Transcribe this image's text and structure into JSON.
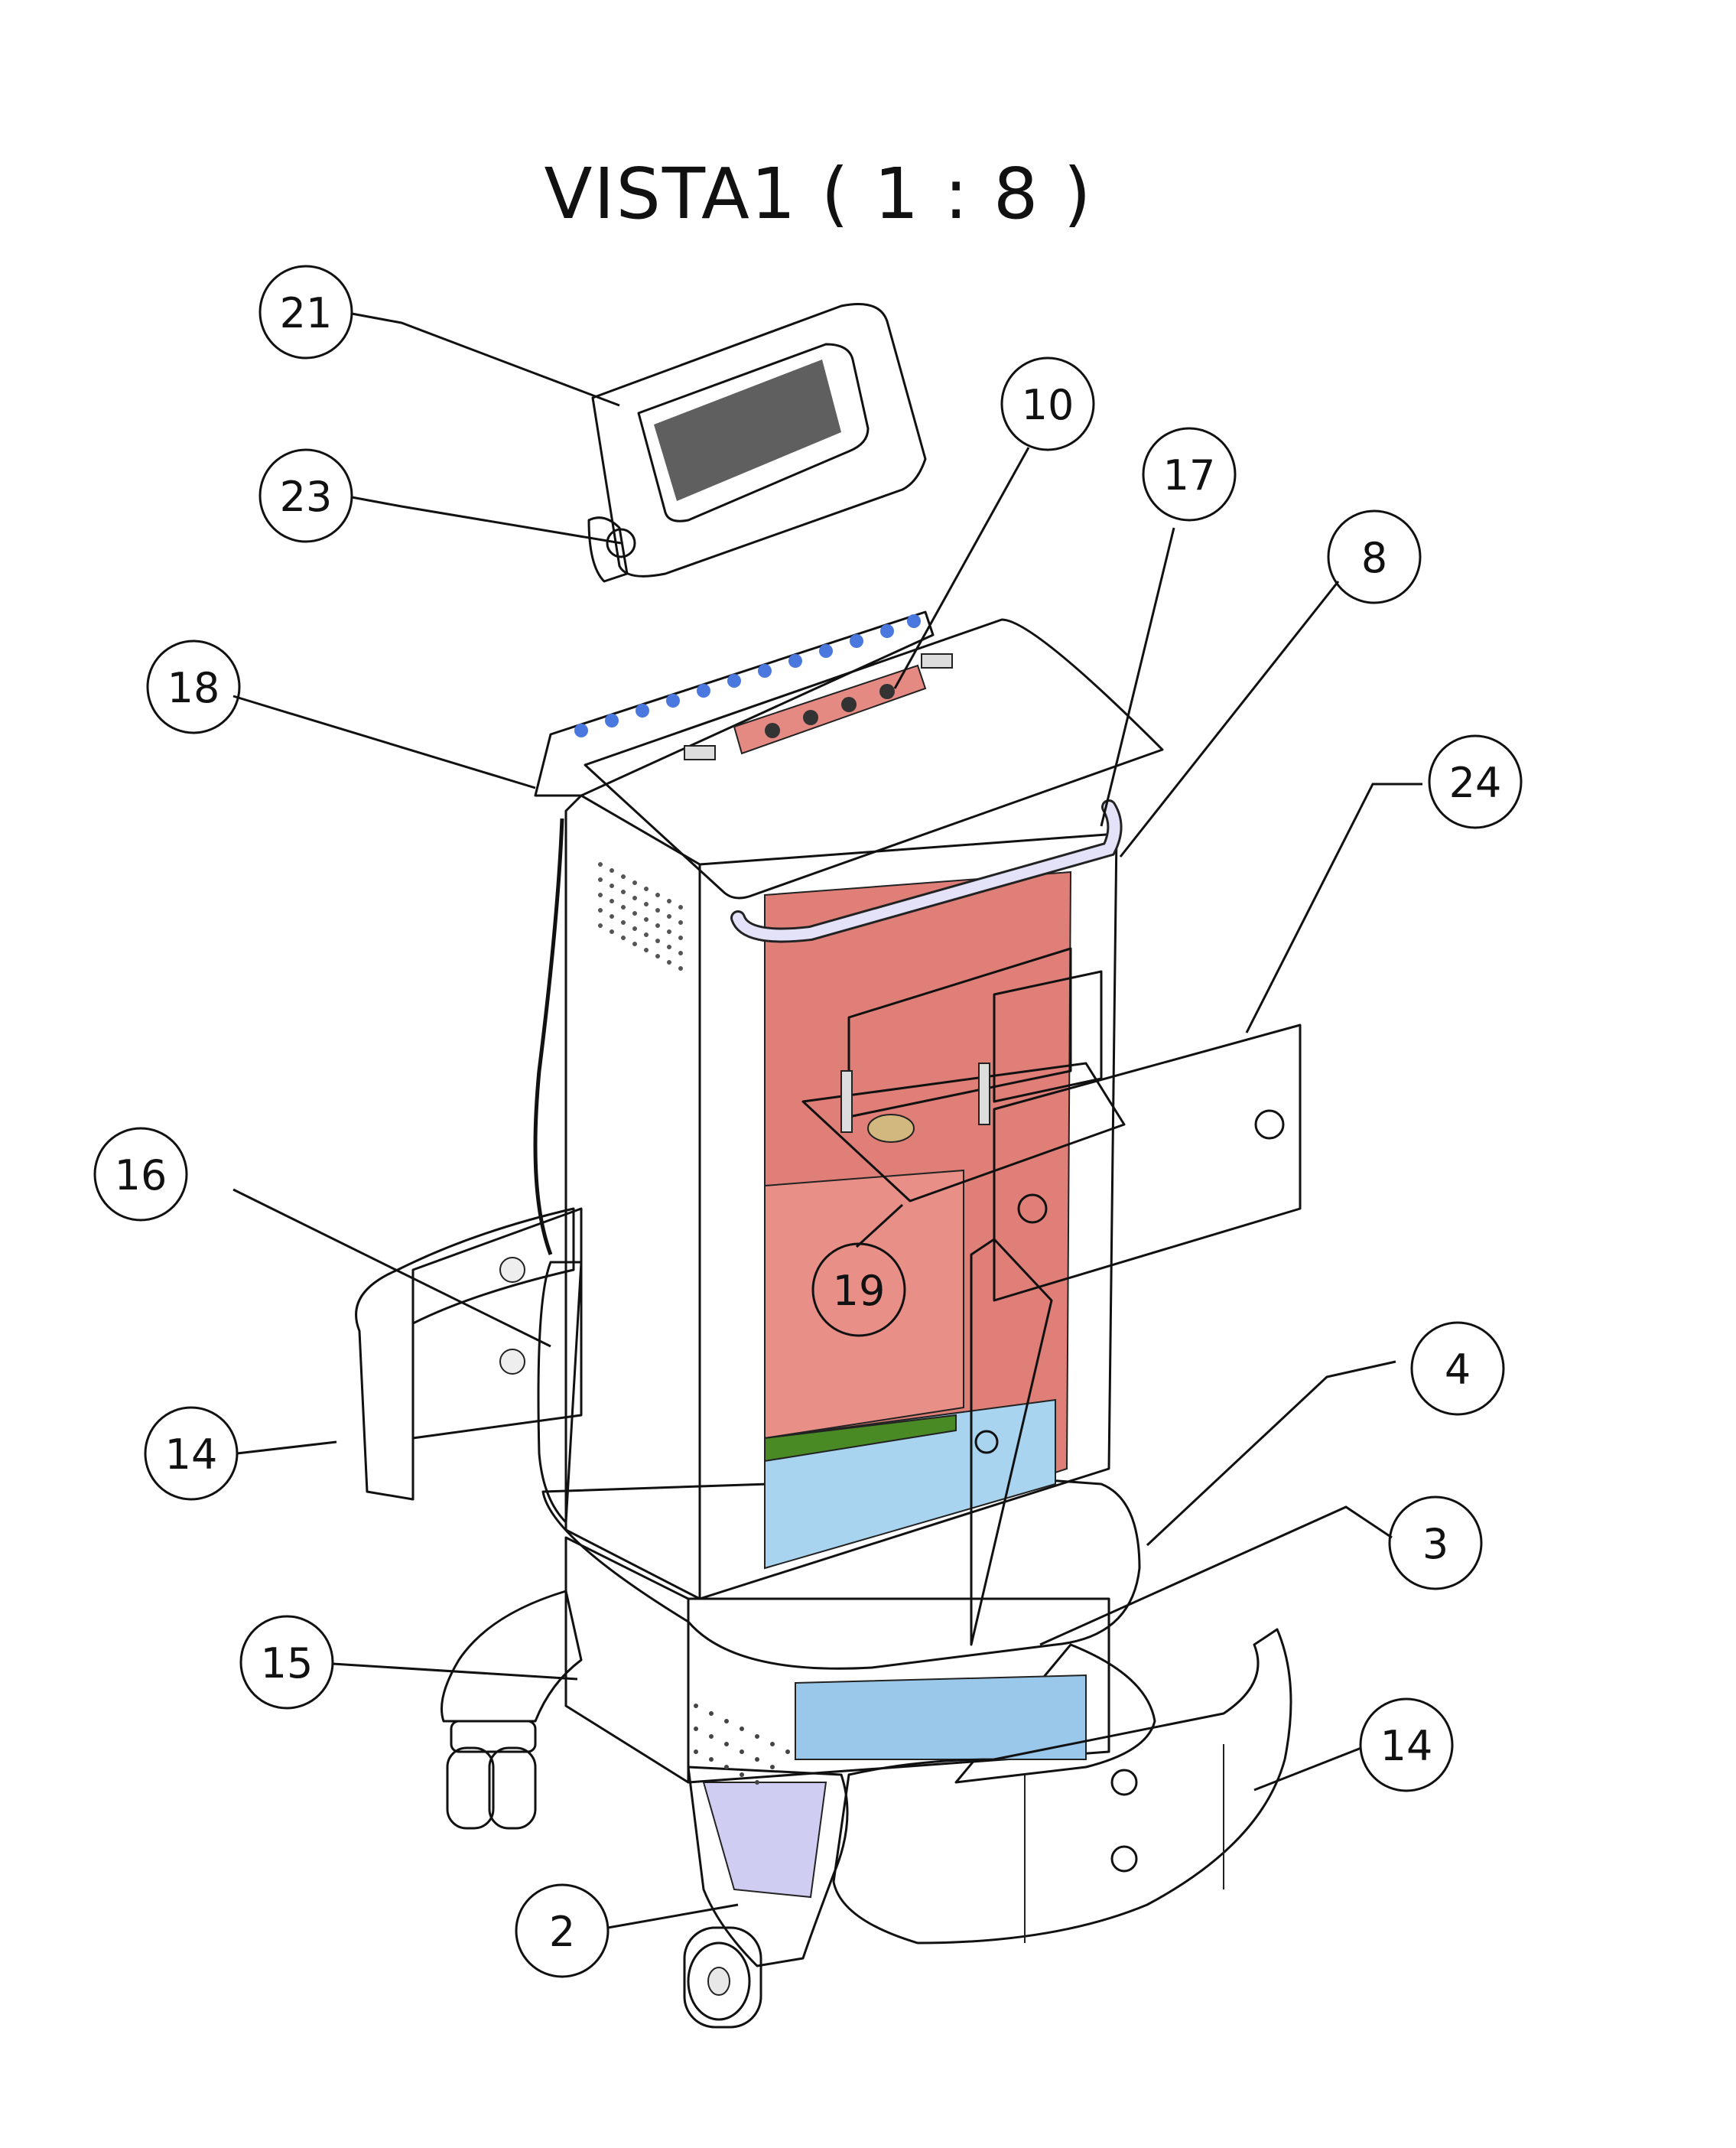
{
  "title": "VISTA1 ( 1 : 8 )",
  "balloons": [
    {
      "id": "b21",
      "label": "21"
    },
    {
      "id": "b23",
      "label": "23"
    },
    {
      "id": "b10",
      "label": "10"
    },
    {
      "id": "b17",
      "label": "17"
    },
    {
      "id": "b8",
      "label": "8"
    },
    {
      "id": "b18",
      "label": "18"
    },
    {
      "id": "b24",
      "label": "24"
    },
    {
      "id": "b16",
      "label": "16"
    },
    {
      "id": "b19",
      "label": "19"
    },
    {
      "id": "b4",
      "label": "4"
    },
    {
      "id": "b14a",
      "label": "14"
    },
    {
      "id": "b3",
      "label": "3"
    },
    {
      "id": "b15",
      "label": "15"
    },
    {
      "id": "b14b",
      "label": "14"
    },
    {
      "id": "b2",
      "label": "2"
    }
  ],
  "colors": {
    "cabinet": "#e58a82",
    "cabinet_side": "#de7c76",
    "top_panel": "#4a78de",
    "purple_part": "#7a1ef0",
    "magenta_part": "#c030e0",
    "green_base": "#4a8a25",
    "board_green": "#4a8a25",
    "board_tan": "#d2b87f",
    "lavender_base": "#dcdaf7",
    "light_blue": "#a8d4f0",
    "screen": "#5f5f5f",
    "white_part": "#ffffff"
  }
}
